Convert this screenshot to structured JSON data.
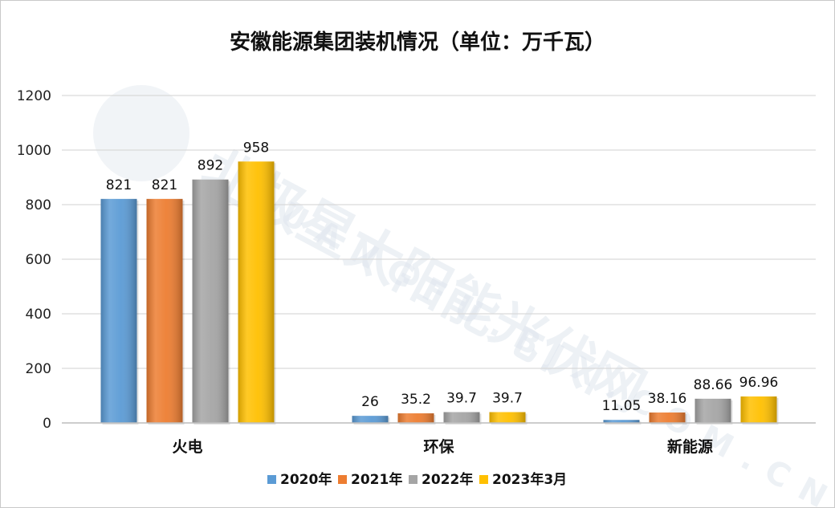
{
  "chart_data": {
    "type": "bar",
    "title": "安徽能源集团装机情况（单位：万千瓦）",
    "categories": [
      "火电",
      "环保",
      "新能源"
    ],
    "series": [
      {
        "name": "2020年",
        "values": [
          821,
          26,
          11.05
        ],
        "labels": [
          "821",
          "26",
          "11.05"
        ],
        "color": "#5B9BD5"
      },
      {
        "name": "2021年",
        "values": [
          821,
          35.2,
          38.16
        ],
        "labels": [
          "821",
          "35.2",
          "38.16"
        ],
        "color": "#ED7D31"
      },
      {
        "name": "2022年",
        "values": [
          892,
          39.7,
          88.66
        ],
        "labels": [
          "892",
          "39.7",
          "88.66"
        ],
        "color": "#A5A5A5"
      },
      {
        "name": "2023年3月",
        "values": [
          958,
          39.7,
          96.96
        ],
        "labels": [
          "958",
          "39.7",
          "96.96"
        ],
        "color": "#FFC000"
      }
    ],
    "ylim": [
      0,
      1200
    ],
    "yticks": [
      0,
      200,
      400,
      600,
      800,
      1000,
      1200
    ],
    "grid": true,
    "legend": "bottom",
    "xlabel": "",
    "ylabel": ""
  },
  "watermark": {
    "text": "北极星太阳能光伏网",
    "subtext": "GUANGFU.BJX.COM.CN"
  }
}
